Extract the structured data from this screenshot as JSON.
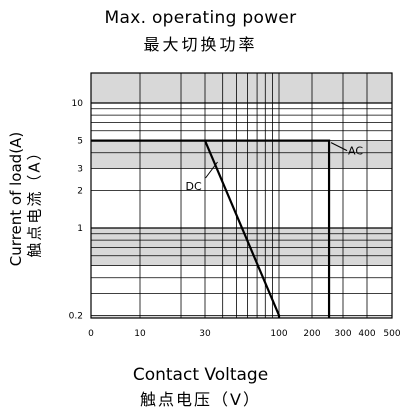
{
  "chart_data": {
    "type": "line",
    "title": "Max. operating power",
    "subtitle": "最大切换功率",
    "xlabel": "Contact Voltage",
    "xlabel_cn": "触点电压（V）",
    "ylabel": "Current of load(A)",
    "ylabel_cn": "触点电流（A）",
    "x_ticks": [
      "0",
      "10",
      "30",
      "100",
      "200",
      "300",
      "400",
      "500"
    ],
    "y_ticks": [
      "10",
      "5",
      "3",
      "2",
      "1",
      "0.2"
    ],
    "ylim": [
      0.1,
      20
    ],
    "grid": true,
    "series": [
      {
        "name": "AC",
        "x": [
          0,
          250,
          250
        ],
        "y": [
          5,
          5,
          0.1
        ]
      },
      {
        "name": "DC",
        "x": [
          30,
          100,
          100
        ],
        "y": [
          5,
          0.2,
          0.1
        ]
      }
    ],
    "annotations": [
      "AC",
      "DC"
    ]
  },
  "colors": {
    "band": "#d8d8d8",
    "line": "#000000",
    "grid": "#000000"
  }
}
